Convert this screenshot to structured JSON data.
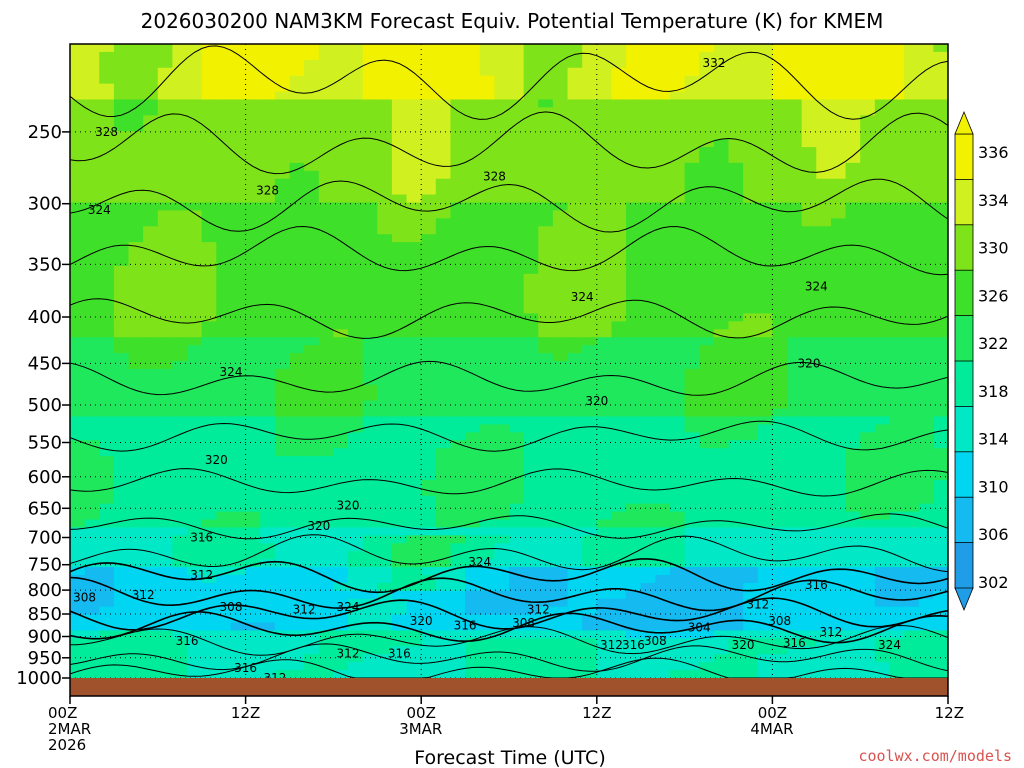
{
  "chart_data": {
    "type": "heatmap",
    "title": "2026030200 NAM3KM Forecast Equiv. Potential Temperature (K) for KMEM",
    "xlabel": "Forecast Time (UTC)",
    "ylabel": "",
    "credit": "coolwx.com/models",
    "x_ticks": [
      {
        "hour": 0,
        "lines": [
          "00Z",
          "2MAR",
          "2026"
        ]
      },
      {
        "hour": 12,
        "lines": [
          "12Z"
        ]
      },
      {
        "hour": 24,
        "lines": [
          "00Z",
          "3MAR"
        ]
      },
      {
        "hour": 36,
        "lines": [
          "12Z"
        ]
      },
      {
        "hour": 48,
        "lines": [
          "00Z",
          "4MAR"
        ]
      },
      {
        "hour": 60,
        "lines": [
          "12Z"
        ]
      }
    ],
    "xlim": [
      0,
      60
    ],
    "y_ticks": [
      250,
      300,
      350,
      400,
      450,
      500,
      550,
      600,
      650,
      700,
      750,
      800,
      850,
      900,
      950,
      1000
    ],
    "ylim": [
      1000,
      200
    ],
    "y_scale": "log-pressure",
    "colorbar": {
      "labels": [
        302,
        306,
        310,
        314,
        318,
        322,
        326,
        330,
        334,
        336
      ],
      "levels": [
        {
          "value": 302,
          "color": "#1f9de6"
        },
        {
          "value": 306,
          "color": "#14baf0"
        },
        {
          "value": 310,
          "color": "#00d6f2"
        },
        {
          "value": 314,
          "color": "#00e8c6"
        },
        {
          "value": 318,
          "color": "#00ec9a"
        },
        {
          "value": 322,
          "color": "#1fe85c"
        },
        {
          "value": 326,
          "color": "#3fe02a"
        },
        {
          "value": 330,
          "color": "#7fe31a"
        },
        {
          "value": 334,
          "color": "#d0f020"
        },
        {
          "value": 336,
          "color": "#f2f200"
        }
      ]
    },
    "contour_labels": [
      {
        "text": "332",
        "hour": 44,
        "p": 210
      },
      {
        "text": "328",
        "hour": 2.5,
        "p": 250
      },
      {
        "text": "324",
        "hour": 2,
        "p": 305
      },
      {
        "text": "328",
        "hour": 13.5,
        "p": 290
      },
      {
        "text": "328",
        "hour": 29,
        "p": 280
      },
      {
        "text": "324",
        "hour": 35,
        "p": 380
      },
      {
        "text": "324",
        "hour": 51,
        "p": 370
      },
      {
        "text": "324",
        "hour": 11,
        "p": 460
      },
      {
        "text": "320",
        "hour": 50.5,
        "p": 450
      },
      {
        "text": "320",
        "hour": 36,
        "p": 495
      },
      {
        "text": "320",
        "hour": 10,
        "p": 575
      },
      {
        "text": "320",
        "hour": 19,
        "p": 645
      },
      {
        "text": "320",
        "hour": 17,
        "p": 680
      },
      {
        "text": "316",
        "hour": 9,
        "p": 700
      },
      {
        "text": "324",
        "hour": 28,
        "p": 745
      },
      {
        "text": "316",
        "hour": 51,
        "p": 790
      },
      {
        "text": "312",
        "hour": 9,
        "p": 770
      },
      {
        "text": "312",
        "hour": 5,
        "p": 810
      },
      {
        "text": "308",
        "hour": 1,
        "p": 815
      },
      {
        "text": "308",
        "hour": 11,
        "p": 835
      },
      {
        "text": "312",
        "hour": 16,
        "p": 840
      },
      {
        "text": "324",
        "hour": 19,
        "p": 835
      },
      {
        "text": "312",
        "hour": 32,
        "p": 840
      },
      {
        "text": "312",
        "hour": 47,
        "p": 830
      },
      {
        "text": "308",
        "hour": 48.5,
        "p": 865
      },
      {
        "text": "320",
        "hour": 24,
        "p": 865
      },
      {
        "text": "316",
        "hour": 27,
        "p": 875
      },
      {
        "text": "308",
        "hour": 31,
        "p": 870
      },
      {
        "text": "304",
        "hour": 43,
        "p": 880
      },
      {
        "text": "312",
        "hour": 52,
        "p": 890
      },
      {
        "text": "308",
        "hour": 40,
        "p": 910
      },
      {
        "text": "316",
        "hour": 49.5,
        "p": 915
      },
      {
        "text": "316",
        "hour": 8,
        "p": 910
      },
      {
        "text": "312",
        "hour": 37,
        "p": 920
      },
      {
        "text": "316",
        "hour": 38.5,
        "p": 920
      },
      {
        "text": "320",
        "hour": 46,
        "p": 920
      },
      {
        "text": "324",
        "hour": 56,
        "p": 920
      },
      {
        "text": "312",
        "hour": 19,
        "p": 940
      },
      {
        "text": "316",
        "hour": 22.5,
        "p": 940
      },
      {
        "text": "316",
        "hour": 12,
        "p": 975
      },
      {
        "text": "312",
        "hour": 14,
        "p": 1000
      }
    ],
    "field_description_bands": [
      {
        "p_top": 200,
        "p_bottom": 230,
        "theta": 334
      },
      {
        "p_top": 230,
        "p_bottom": 300,
        "theta": 330
      },
      {
        "p_top": 300,
        "p_bottom": 420,
        "theta": 327
      },
      {
        "p_top": 420,
        "p_bottom": 520,
        "theta": 323
      },
      {
        "p_top": 520,
        "p_bottom": 680,
        "theta": 319
      },
      {
        "p_top": 680,
        "p_bottom": 760,
        "theta": 315
      },
      {
        "p_top": 760,
        "p_bottom": 880,
        "theta": 310
      },
      {
        "p_top": 880,
        "p_bottom": 1000,
        "theta": 316
      }
    ],
    "grid": true
  }
}
